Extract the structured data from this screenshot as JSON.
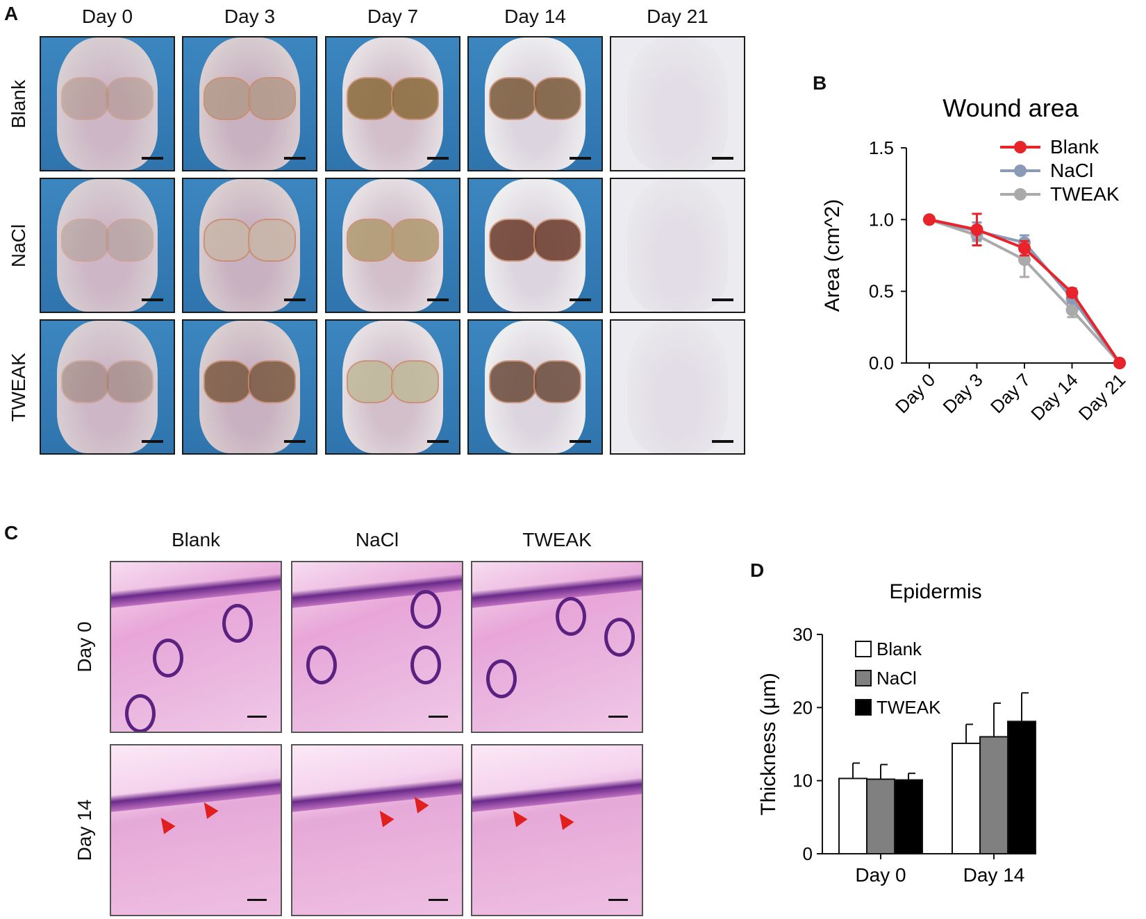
{
  "panel_A": {
    "letter": "A",
    "columns": [
      "Day 0",
      "Day 3",
      "Day 7",
      "Day 14",
      "Day 21"
    ],
    "rows": [
      "Blank",
      "NaCl",
      "TWEAK"
    ]
  },
  "panel_C": {
    "letter": "C",
    "columns": [
      "Blank",
      "NaCl",
      "TWEAK"
    ],
    "rows": [
      "Day 0",
      "Day 14"
    ]
  },
  "chart_data": [
    {
      "panel": "B",
      "type": "line",
      "title": "Wound area",
      "xlabel": "",
      "ylabel": "Area (cm^2)",
      "categories": [
        "Day 0",
        "Day 3",
        "Day 7",
        "Day 14",
        "Day 21"
      ],
      "ylim": [
        0,
        1.5
      ],
      "yticks": [
        "0.0",
        "0.5",
        "1.0",
        "1.5"
      ],
      "legend_position": "top-right",
      "grid": false,
      "series": [
        {
          "name": "Blank",
          "color": "#e8232a",
          "values": [
            1.0,
            0.93,
            0.8,
            0.49,
            0.0
          ],
          "errors": [
            0.02,
            0.11,
            0.05,
            0.03,
            0.0
          ]
        },
        {
          "name": "NaCl",
          "color": "#8a9bb8",
          "values": [
            1.0,
            0.92,
            0.84,
            0.45,
            0.0
          ],
          "errors": [
            0.02,
            0.06,
            0.05,
            0.03,
            0.0
          ]
        },
        {
          "name": "TWEAK",
          "color": "#aaaaaa",
          "values": [
            1.0,
            0.89,
            0.72,
            0.37,
            0.0
          ],
          "errors": [
            0.02,
            0.04,
            0.12,
            0.05,
            0.0
          ]
        }
      ]
    },
    {
      "panel": "D",
      "type": "bar",
      "title": "Epidermis",
      "xlabel": "",
      "ylabel": "Thickness (μm)",
      "categories": [
        "Day 0",
        "Day 14"
      ],
      "ylim": [
        0,
        30
      ],
      "yticks": [
        "0",
        "10",
        "20",
        "30"
      ],
      "legend_position": "top-left",
      "grid": false,
      "series": [
        {
          "name": "Blank",
          "color": "#ffffff",
          "values": [
            10.3,
            15.1
          ],
          "errors": [
            2.1,
            2.6
          ]
        },
        {
          "name": "NaCl",
          "color": "#808080",
          "values": [
            10.2,
            16.0
          ],
          "errors": [
            2.0,
            4.6
          ]
        },
        {
          "name": "TWEAK",
          "color": "#000000",
          "values": [
            10.1,
            18.1
          ],
          "errors": [
            0.9,
            3.9
          ]
        }
      ]
    }
  ]
}
